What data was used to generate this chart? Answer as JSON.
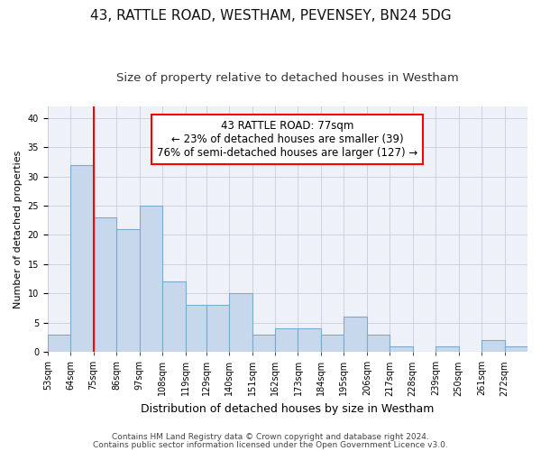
{
  "title": "43, RATTLE ROAD, WESTHAM, PEVENSEY, BN24 5DG",
  "subtitle": "Size of property relative to detached houses in Westham",
  "xlabel": "Distribution of detached houses by size in Westham",
  "ylabel": "Number of detached properties",
  "bar_left_edges": [
    53,
    64,
    75,
    86,
    97,
    108,
    119,
    129,
    140,
    151,
    162,
    173,
    184,
    195,
    206,
    217,
    228,
    239,
    250,
    261,
    272
  ],
  "bar_widths": [
    11,
    11,
    11,
    11,
    11,
    11,
    10,
    11,
    11,
    11,
    11,
    11,
    11,
    11,
    11,
    11,
    11,
    11,
    11,
    11,
    11
  ],
  "bar_heights": [
    3,
    32,
    23,
    21,
    25,
    12,
    8,
    8,
    10,
    3,
    4,
    4,
    3,
    6,
    3,
    1,
    0,
    1,
    0,
    2,
    1
  ],
  "tick_labels": [
    "53sqm",
    "64sqm",
    "75sqm",
    "86sqm",
    "97sqm",
    "108sqm",
    "119sqm",
    "129sqm",
    "140sqm",
    "151sqm",
    "162sqm",
    "173sqm",
    "184sqm",
    "195sqm",
    "206sqm",
    "217sqm",
    "228sqm",
    "239sqm",
    "250sqm",
    "261sqm",
    "272sqm"
  ],
  "bar_color": "#c8d8ec",
  "bar_edge_color": "#7aaacc",
  "red_line_x": 75,
  "ylim": [
    0,
    42
  ],
  "yticks": [
    0,
    5,
    10,
    15,
    20,
    25,
    30,
    35,
    40
  ],
  "annotation_line1": "43 RATTLE ROAD: 77sqm",
  "annotation_line2": "← 23% of detached houses are smaller (39)",
  "annotation_line3": "76% of semi-detached houses are larger (127) →",
  "footer1": "Contains HM Land Registry data © Crown copyright and database right 2024.",
  "footer2": "Contains public sector information licensed under the Open Government Licence v3.0.",
  "background_color": "#ffffff",
  "plot_bg_color": "#eef2f8",
  "title_fontsize": 11,
  "subtitle_fontsize": 9.5,
  "tick_fontsize": 7,
  "ylabel_fontsize": 8,
  "xlabel_fontsize": 9,
  "annotation_fontsize": 8.5,
  "footer_fontsize": 6.5
}
